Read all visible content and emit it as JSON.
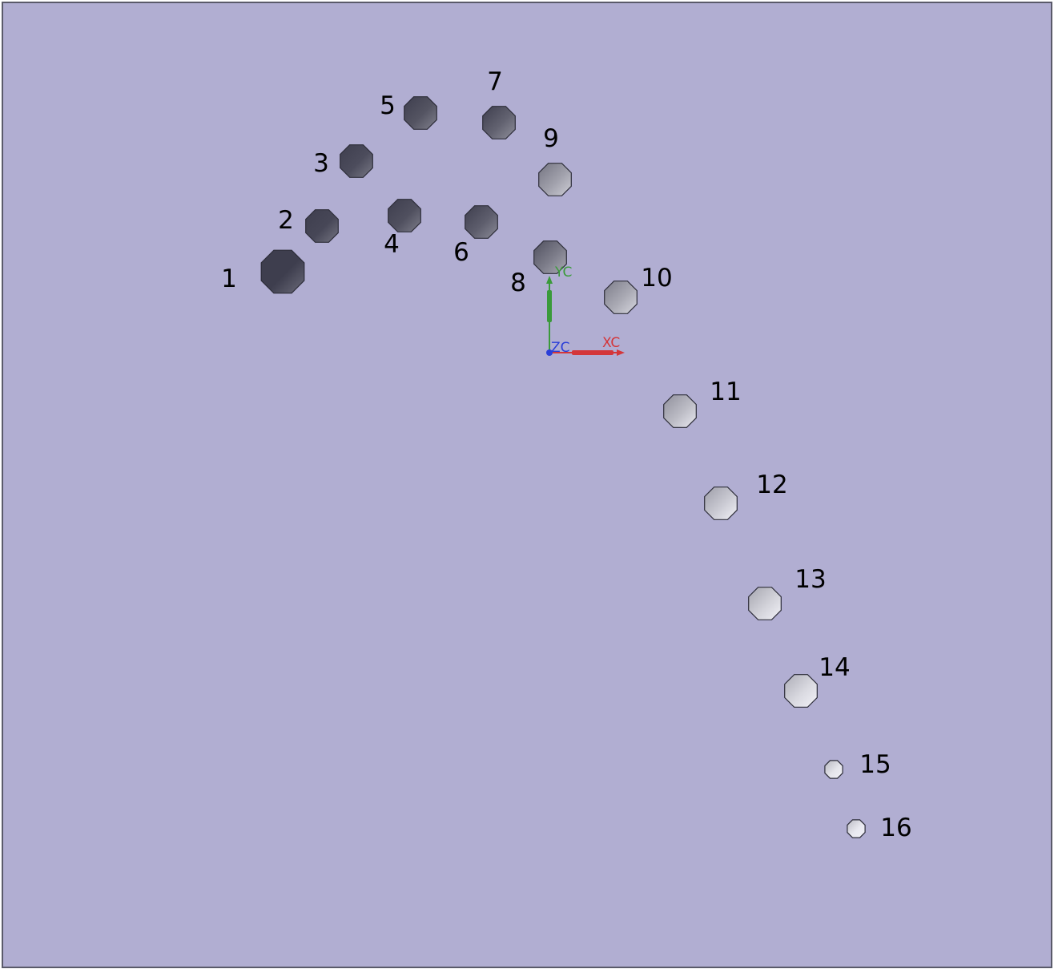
{
  "colors": {
    "background": "#b1aed2",
    "frame": "#5a5a6a",
    "x_axis": "#d4363a",
    "y_axis": "#3a9a3a",
    "z_axis": "#2a3ed8",
    "dark_hole": "#3e3e4e",
    "light_hole": "#f2f2f8"
  },
  "icons": {
    "holes": "octagon-hole-icon",
    "triad": "wcs-axis-triad-icon"
  },
  "triad": {
    "x_label": "XC",
    "y_label": "YC",
    "z_label": "ZC"
  },
  "holes": [
    {
      "label": "1",
      "shade": 0.0
    },
    {
      "label": "2",
      "shade": 0.05
    },
    {
      "label": "3",
      "shade": 0.08
    },
    {
      "label": "4",
      "shade": 0.1
    },
    {
      "label": "5",
      "shade": 0.12
    },
    {
      "label": "6",
      "shade": 0.18
    },
    {
      "label": "7",
      "shade": 0.2
    },
    {
      "label": "8",
      "shade": 0.35
    },
    {
      "label": "9",
      "shade": 0.55
    },
    {
      "label": "10",
      "shade": 0.6
    },
    {
      "label": "11",
      "shade": 0.7
    },
    {
      "label": "12",
      "shade": 0.78
    },
    {
      "label": "13",
      "shade": 0.82
    },
    {
      "label": "14",
      "shade": 0.86
    },
    {
      "label": "15",
      "shade": 0.92
    },
    {
      "label": "16",
      "shade": 0.95
    }
  ]
}
